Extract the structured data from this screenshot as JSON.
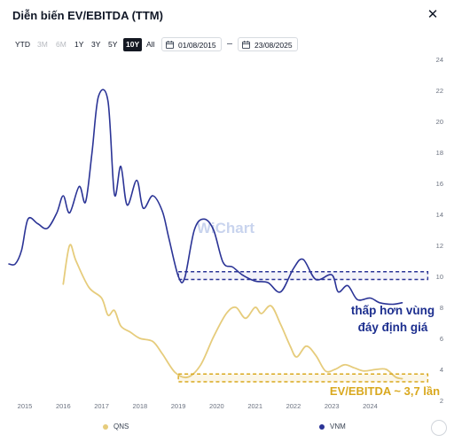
{
  "window": {
    "title": "Diễn biến EV/EBITDA (TTM)"
  },
  "ranges": [
    {
      "label": "YTD",
      "state": "enabled"
    },
    {
      "label": "3M",
      "state": "disabled"
    },
    {
      "label": "6M",
      "state": "disabled"
    },
    {
      "label": "1Y",
      "state": "enabled"
    },
    {
      "label": "3Y",
      "state": "enabled"
    },
    {
      "label": "5Y",
      "state": "enabled"
    },
    {
      "label": "10Y",
      "state": "active"
    },
    {
      "label": "All",
      "state": "enabled"
    }
  ],
  "date_from": "01/08/2015",
  "date_to": "23/08/2025",
  "watermark": "WiChart",
  "colors": {
    "vnm": "#2b3496",
    "qns": "#e6cc7c",
    "annotation_blue": "#1d2f8f",
    "annotation_yellow": "#d9a81e"
  },
  "chart_data": {
    "type": "line",
    "ylim": [
      2,
      24
    ],
    "yticks": [
      "2",
      "4",
      "6",
      "8",
      "10",
      "12",
      "14",
      "16",
      "18",
      "20",
      "22",
      "24"
    ],
    "x_range": [
      "2014-08",
      "2025-08"
    ],
    "xticks": [
      "2015",
      "2016",
      "2017",
      "2018",
      "2019",
      "2020",
      "2021",
      "2022",
      "2023",
      "2024"
    ],
    "grid": false,
    "legend_position": "bottom",
    "series": [
      {
        "name": "VNM",
        "color": "#2b3496",
        "points": [
          [
            "2014-08",
            10.8
          ],
          [
            "2014-10",
            10.8
          ],
          [
            "2014-12",
            11.7
          ],
          [
            "2015-02",
            13.7
          ],
          [
            "2015-05",
            13.4
          ],
          [
            "2015-08",
            13.1
          ],
          [
            "2015-11",
            14.1
          ],
          [
            "2016-01",
            15.2
          ],
          [
            "2016-03",
            14.1
          ],
          [
            "2016-06",
            15.8
          ],
          [
            "2016-08",
            14.8
          ],
          [
            "2016-10",
            18.0
          ],
          [
            "2016-12",
            21.6
          ],
          [
            "2017-03",
            21.3
          ],
          [
            "2017-05",
            15.3
          ],
          [
            "2017-07",
            17.1
          ],
          [
            "2017-09",
            14.6
          ],
          [
            "2017-12",
            16.2
          ],
          [
            "2018-02",
            14.4
          ],
          [
            "2018-05",
            15.2
          ],
          [
            "2018-08",
            14.2
          ],
          [
            "2018-10",
            12.5
          ],
          [
            "2019-01",
            10.0
          ],
          [
            "2019-03",
            9.9
          ],
          [
            "2019-06",
            13.0
          ],
          [
            "2019-09",
            13.7
          ],
          [
            "2019-12",
            13.0
          ],
          [
            "2020-03",
            10.9
          ],
          [
            "2020-06",
            10.6
          ],
          [
            "2020-09",
            10.1
          ],
          [
            "2021-01",
            9.7
          ],
          [
            "2021-05",
            9.6
          ],
          [
            "2021-09",
            9.0
          ],
          [
            "2022-01",
            10.5
          ],
          [
            "2022-04",
            11.1
          ],
          [
            "2022-08",
            9.8
          ],
          [
            "2023-01",
            10.1
          ],
          [
            "2023-03",
            9.0
          ],
          [
            "2023-06",
            9.4
          ],
          [
            "2023-09",
            8.5
          ],
          [
            "2024-01",
            8.6
          ],
          [
            "2024-04",
            8.3
          ],
          [
            "2024-08",
            8.2
          ],
          [
            "2024-11",
            8.3
          ]
        ]
      },
      {
        "name": "QNS",
        "color": "#e6cc7c",
        "points": [
          [
            "2016-01",
            9.5
          ],
          [
            "2016-03",
            12.0
          ],
          [
            "2016-05",
            11.0
          ],
          [
            "2016-09",
            9.3
          ],
          [
            "2017-01",
            8.6
          ],
          [
            "2017-03",
            7.5
          ],
          [
            "2017-05",
            7.8
          ],
          [
            "2017-07",
            6.8
          ],
          [
            "2017-10",
            6.4
          ],
          [
            "2018-01",
            6.0
          ],
          [
            "2018-05",
            5.8
          ],
          [
            "2018-08",
            5.0
          ],
          [
            "2018-12",
            3.8
          ],
          [
            "2019-04",
            3.5
          ],
          [
            "2019-08",
            4.3
          ],
          [
            "2019-12",
            6.1
          ],
          [
            "2020-04",
            7.6
          ],
          [
            "2020-07",
            8.0
          ],
          [
            "2020-10",
            7.3
          ],
          [
            "2021-01",
            8.0
          ],
          [
            "2021-03",
            7.6
          ],
          [
            "2021-06",
            8.1
          ],
          [
            "2021-09",
            6.9
          ],
          [
            "2021-12",
            5.5
          ],
          [
            "2022-02",
            4.8
          ],
          [
            "2022-05",
            5.5
          ],
          [
            "2022-08",
            4.9
          ],
          [
            "2022-11",
            3.9
          ],
          [
            "2023-02",
            4.0
          ],
          [
            "2023-05",
            4.3
          ],
          [
            "2023-08",
            4.1
          ],
          [
            "2023-11",
            3.9
          ],
          [
            "2024-03",
            4.0
          ],
          [
            "2024-06",
            4.0
          ],
          [
            "2024-09",
            3.5
          ],
          [
            "2024-11",
            3.4
          ]
        ]
      }
    ],
    "annotations": [
      {
        "kind": "band",
        "series": "VNM",
        "y": [
          9.8,
          10.3
        ],
        "x": [
          "2019-01",
          "2025-07"
        ]
      },
      {
        "kind": "band",
        "series": "QNS",
        "y": [
          3.2,
          3.7
        ],
        "x": [
          "2019-01",
          "2025-07"
        ]
      },
      {
        "kind": "text",
        "series": "VNM",
        "lines": [
          "thấp hơn vùng",
          "đáy định giá"
        ]
      },
      {
        "kind": "text",
        "series": "QNS",
        "lines": [
          "EV/EBITDA ~ 3,7 lần"
        ]
      }
    ]
  }
}
